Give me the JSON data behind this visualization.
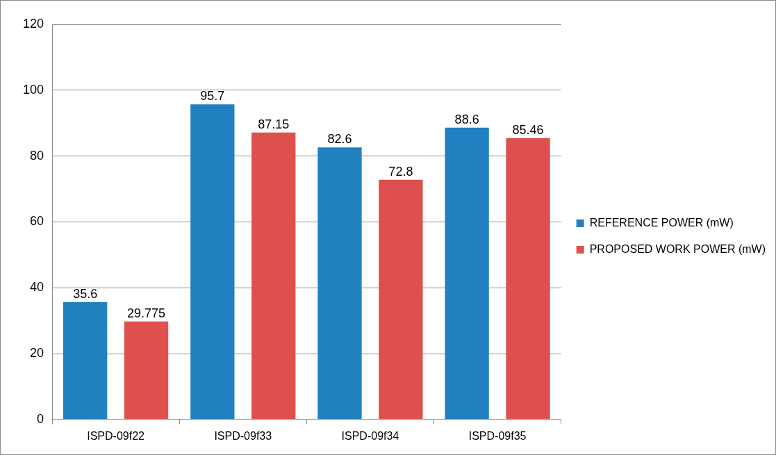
{
  "chart_data": {
    "type": "bar",
    "categories": [
      "ISPD-09f22",
      "ISPD-09f33",
      "ISPD-09f34",
      "ISPD-09f35"
    ],
    "series": [
      {
        "name": "REFERENCE POWER (mW)",
        "color": "#2080c0",
        "values": [
          35.6,
          95.7,
          82.6,
          88.6
        ]
      },
      {
        "name": "PROPOSED WORK POWER (mW)",
        "color": "#de504d",
        "values": [
          29.775,
          87.15,
          72.8,
          85.46
        ]
      }
    ],
    "ylim": [
      0,
      120
    ],
    "yticks": [
      0,
      20,
      40,
      60,
      80,
      100,
      120
    ],
    "grid": "y",
    "legend": "right",
    "data_labels": true
  }
}
